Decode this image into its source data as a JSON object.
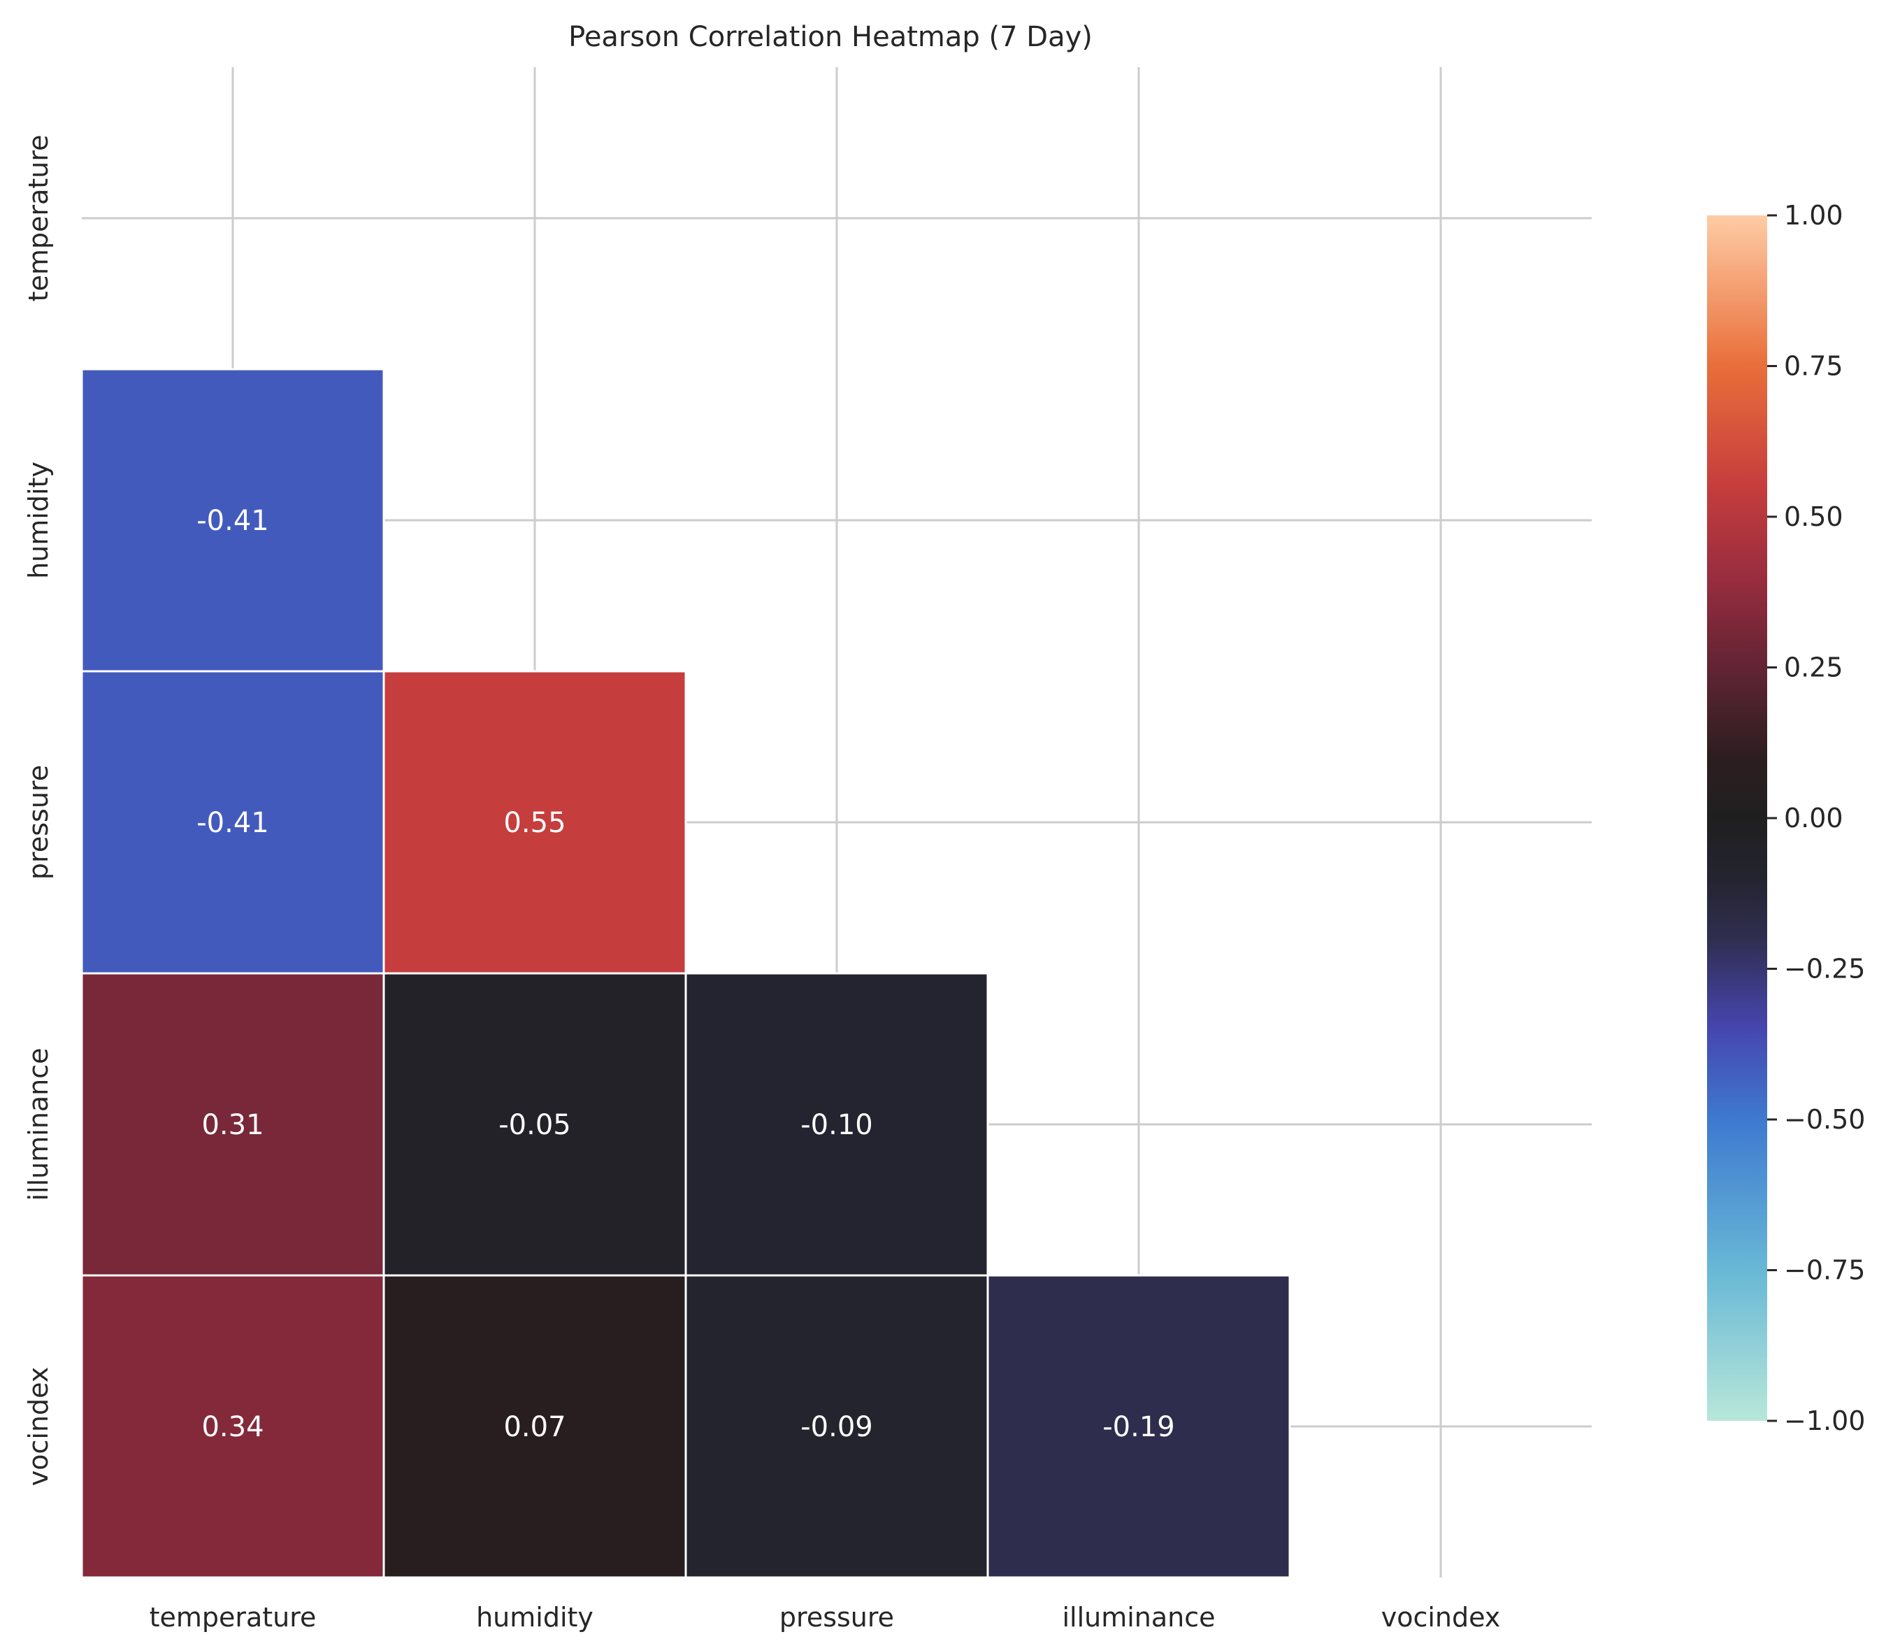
{
  "chart_data": {
    "type": "heatmap",
    "title": "Pearson Correlation Heatmap (7 Day)",
    "variables": [
      "temperature",
      "humidity",
      "pressure",
      "illuminance",
      "vocindex"
    ],
    "matrix": [
      [
        null,
        null,
        null,
        null,
        null
      ],
      [
        -0.41,
        null,
        null,
        null,
        null
      ],
      [
        -0.41,
        0.55,
        null,
        null,
        null
      ],
      [
        0.31,
        -0.05,
        -0.1,
        null,
        null
      ],
      [
        0.34,
        0.07,
        -0.09,
        -0.19,
        null
      ]
    ],
    "mask": "upper-triangle-including-diagonal",
    "vmin": -1.0,
    "vmax": 1.0,
    "colormap": "icefire",
    "colorbar": {
      "ticks": [
        1.0,
        0.75,
        0.5,
        0.25,
        0.0,
        -0.25,
        -0.5,
        -0.75,
        -1.0
      ],
      "tick_labels": [
        "1.00",
        "0.75",
        "0.50",
        "0.25",
        "0.00",
        "−0.25",
        "−0.50",
        "−0.75",
        "−1.00"
      ]
    },
    "grid": true
  }
}
